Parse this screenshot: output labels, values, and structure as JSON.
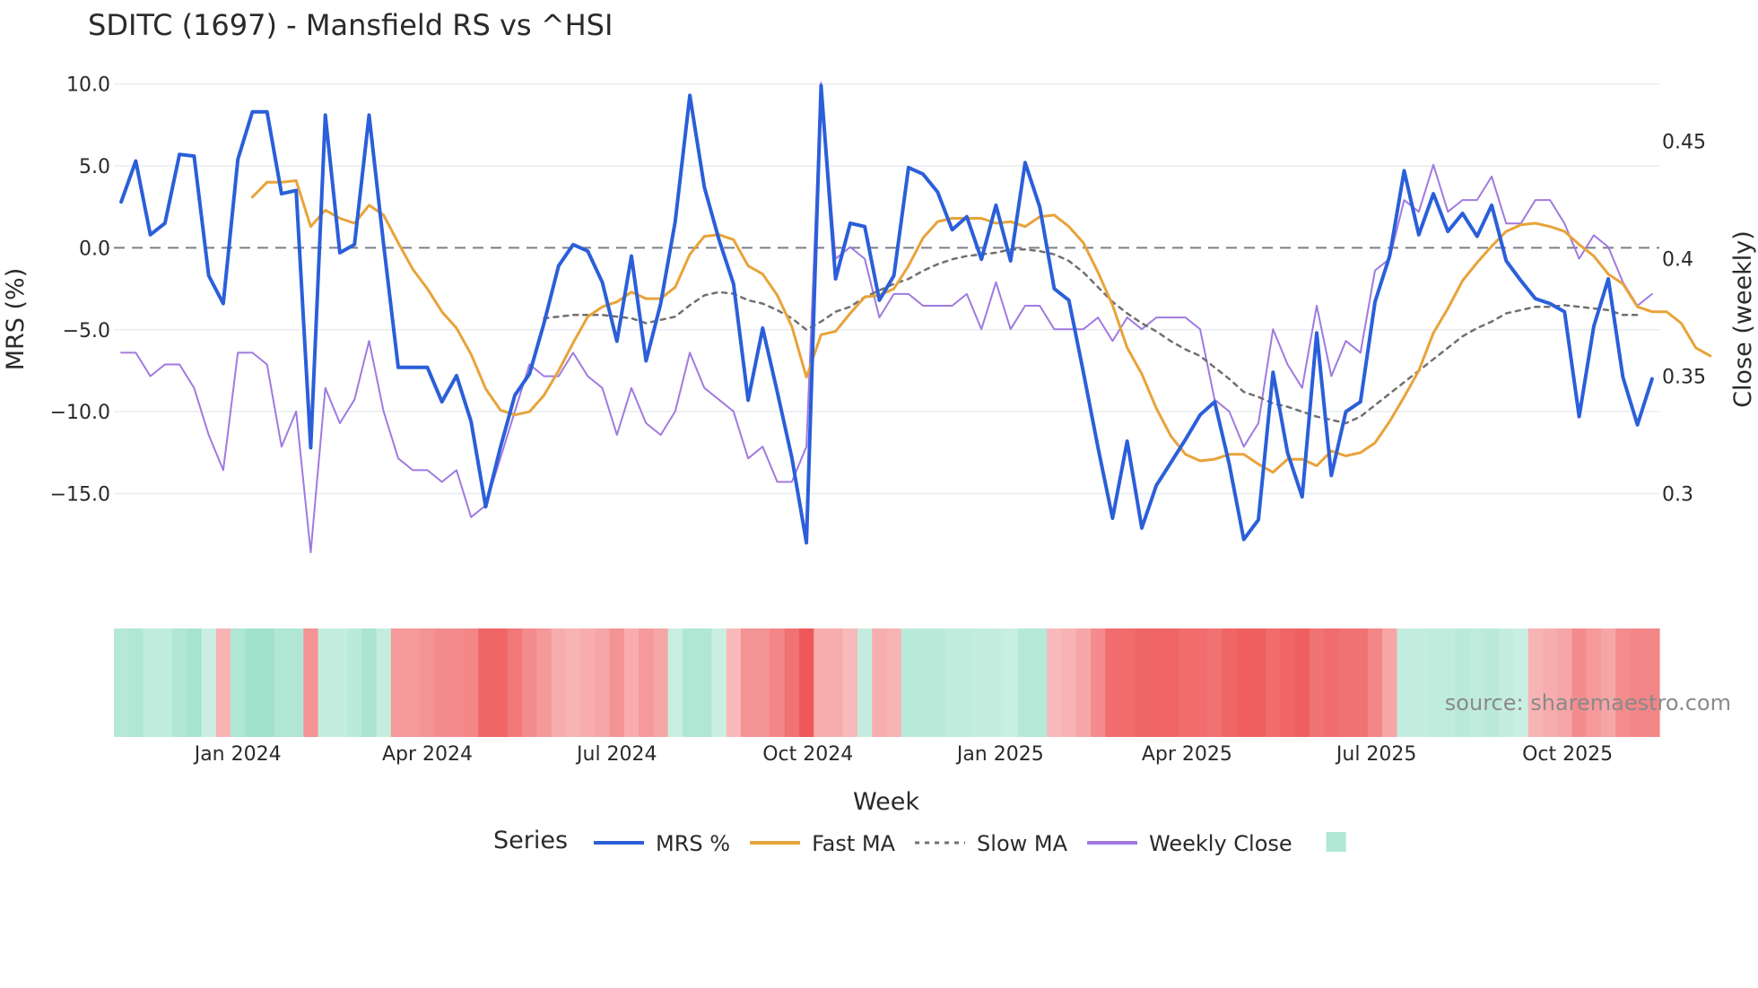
{
  "chart_data": {
    "type": "line",
    "title": "SDITC (1697) - Mansfield RS vs ^HSI",
    "xlabel": "Week",
    "ylabel": "MRS (%)",
    "y2label": "Close (weekly)",
    "ylim": [
      -18.8,
      10.2
    ],
    "y2lim": [
      0.2735,
      0.4758
    ],
    "y_ticks": [
      10,
      5,
      0,
      -5,
      -10,
      -15
    ],
    "y_tick_labels": [
      "10.0",
      "5.0",
      "0.0",
      "−5.0",
      "−10.0",
      "−15.0"
    ],
    "y2_ticks": [
      0.45,
      0.4,
      0.35,
      0.3
    ],
    "y2_tick_labels": [
      "0.45",
      "0.4",
      "0.35",
      "0.3"
    ],
    "x_tick_labels": [
      "Jan 2024",
      "Apr 2024",
      "Jul 2024",
      "Oct 2024",
      "Jan 2025",
      "Apr 2025",
      "Jul 2025",
      "Oct 2025"
    ],
    "x_tick_weeks": [
      8.5,
      21.5,
      34.5,
      47.6,
      60.8,
      73.6,
      86.6,
      99.7
    ],
    "week_count": 106,
    "zero_line": 0,
    "source": "source: sharemaestro.com",
    "legend_title": "Series",
    "series": [
      {
        "name": "MRS %",
        "color": "#2b5fd9",
        "axis": "y",
        "start": 0,
        "values": [
          2.8,
          5.3,
          0.8,
          1.5,
          5.7,
          5.6,
          -1.7,
          -3.4,
          5.4,
          8.3,
          8.3,
          3.3,
          3.5,
          -12.2,
          8.1,
          -0.3,
          0.2,
          8.1,
          0.2,
          -7.3,
          -7.3,
          -7.3,
          -9.4,
          -7.8,
          -10.6,
          -15.8,
          -12.2,
          -9.0,
          -7.7,
          -4.6,
          -1.1,
          0.2,
          -0.2,
          -2.1,
          -5.7,
          -0.5,
          -6.9,
          -3.4,
          1.6,
          9.3,
          3.7,
          0.5,
          -2.2,
          -9.3,
          -4.9,
          -8.8,
          -12.8,
          -18.0,
          9.9,
          -1.9,
          1.5,
          1.3,
          -3.2,
          -1.7,
          4.9,
          4.5,
          3.4,
          1.1,
          1.9,
          -0.7,
          2.6,
          -0.8,
          5.2,
          2.5,
          -2.5,
          -3.2,
          -7.6,
          -12.2,
          -16.5,
          -11.8,
          -17.1,
          -14.5,
          -13.1,
          -11.7,
          -10.2,
          -9.4,
          -13.2,
          -17.8,
          -16.6,
          -7.6,
          -12.5,
          -15.2,
          -5.2,
          -13.9,
          -10.0,
          -9.4,
          -3.3,
          -0.5,
          4.7,
          0.8,
          3.3,
          1.0,
          2.1,
          0.7,
          2.6,
          -0.8,
          -2.0,
          -3.1,
          -3.4,
          -3.9,
          -10.3,
          -4.8,
          -1.9,
          -7.9,
          -10.8,
          -8.0
        ]
      },
      {
        "name": "Fast MA",
        "color": "#e8a33a",
        "axis": "y",
        "start": 9,
        "values": [
          3.1,
          4.0,
          4.0,
          4.1,
          1.3,
          2.3,
          1.8,
          1.5,
          2.6,
          2.0,
          0.3,
          -1.3,
          -2.5,
          -3.9,
          -4.9,
          -6.5,
          -8.6,
          -9.9,
          -10.2,
          -10.0,
          -9.0,
          -7.5,
          -5.8,
          -4.2,
          -3.6,
          -3.3,
          -2.7,
          -3.1,
          -3.1,
          -2.4,
          -0.4,
          0.7,
          0.8,
          0.5,
          -1.1,
          -1.6,
          -2.9,
          -4.8,
          -7.9,
          -5.3,
          -5.1,
          -4.0,
          -3.0,
          -2.9,
          -2.5,
          -1.1,
          0.6,
          1.6,
          1.8,
          1.8,
          1.8,
          1.5,
          1.6,
          1.3,
          1.9,
          2.0,
          1.3,
          0.3,
          -1.5,
          -3.5,
          -6.1,
          -7.7,
          -9.8,
          -11.5,
          -12.6,
          -13.0,
          -12.9,
          -12.6,
          -12.6,
          -13.2,
          -13.7,
          -12.9,
          -12.9,
          -13.3,
          -12.4,
          -12.7,
          -12.5,
          -11.9,
          -10.6,
          -9.1,
          -7.5,
          -5.2,
          -3.7,
          -2.0,
          -0.9,
          0.1,
          1.0,
          1.4,
          1.5,
          1.3,
          1.0,
          0.2,
          -0.5,
          -1.6,
          -2.2,
          -3.6,
          -3.9,
          -3.9,
          -4.6,
          -6.1,
          -6.6
        ]
      },
      {
        "name": "Slow MA",
        "color": "#707070",
        "axis": "y",
        "start": 29,
        "dash": "5,6",
        "values": [
          -4.3,
          -4.2,
          -4.1,
          -4.1,
          -4.1,
          -4.2,
          -4.3,
          -4.6,
          -4.4,
          -4.2,
          -3.5,
          -2.9,
          -2.7,
          -2.8,
          -3.2,
          -3.4,
          -3.8,
          -4.3,
          -5.0,
          -4.5,
          -3.9,
          -3.6,
          -3.0,
          -2.6,
          -2.2,
          -1.9,
          -1.4,
          -1.0,
          -0.7,
          -0.5,
          -0.4,
          -0.3,
          -0.1,
          -0.1,
          -0.2,
          -0.4,
          -0.8,
          -1.5,
          -2.4,
          -3.3,
          -4.0,
          -4.6,
          -5.1,
          -5.7,
          -6.2,
          -6.6,
          -7.3,
          -8.0,
          -8.8,
          -9.1,
          -9.5,
          -9.7,
          -10.0,
          -10.3,
          -10.5,
          -10.7,
          -10.3,
          -9.6,
          -8.9,
          -8.2,
          -7.5,
          -6.8,
          -6.1,
          -5.4,
          -4.9,
          -4.5,
          -4.0,
          -3.8,
          -3.6,
          -3.6,
          -3.5,
          -3.6,
          -3.7,
          -3.8,
          -4.1,
          -4.1
        ]
      },
      {
        "name": "Weekly Close",
        "color": "#a07ae0",
        "axis": "y2",
        "start": 0,
        "values": [
          0.36,
          0.36,
          0.35,
          0.355,
          0.355,
          0.345,
          0.325,
          0.31,
          0.36,
          0.36,
          0.355,
          0.32,
          0.335,
          0.275,
          0.345,
          0.33,
          0.34,
          0.365,
          0.335,
          0.315,
          0.31,
          0.31,
          0.305,
          0.31,
          0.29,
          0.295,
          0.315,
          0.335,
          0.355,
          0.35,
          0.35,
          0.36,
          0.35,
          0.345,
          0.325,
          0.345,
          0.33,
          0.325,
          0.335,
          0.36,
          0.345,
          0.34,
          0.335,
          0.315,
          0.32,
          0.305,
          0.305,
          0.32,
          0.475,
          0.4,
          0.405,
          0.4,
          0.375,
          0.385,
          0.385,
          0.38,
          0.38,
          0.38,
          0.385,
          0.37,
          0.39,
          0.37,
          0.38,
          0.38,
          0.37,
          0.37,
          0.37,
          0.375,
          0.365,
          0.375,
          0.37,
          0.375,
          0.375,
          0.375,
          0.37,
          0.34,
          0.335,
          0.32,
          0.33,
          0.37,
          0.355,
          0.345,
          0.38,
          0.35,
          0.365,
          0.36,
          0.395,
          0.4,
          0.425,
          0.42,
          0.44,
          0.42,
          0.425,
          0.425,
          0.435,
          0.415,
          0.415,
          0.425,
          0.425,
          0.415,
          0.4,
          0.41,
          0.405,
          0.39,
          0.38,
          0.385
        ]
      }
    ],
    "regime_strip": {
      "description": "weekly MRS regime shading, positive=green negative=red, intensity 0-1",
      "values": [
        0.4,
        0.45,
        0.3,
        0.3,
        0.45,
        0.55,
        0.2,
        -0.25,
        0.45,
        0.6,
        0.6,
        0.45,
        0.45,
        -0.5,
        0.25,
        0.25,
        0.35,
        0.5,
        0.25,
        -0.45,
        -0.45,
        -0.5,
        -0.55,
        -0.55,
        -0.6,
        -0.85,
        -0.85,
        -0.7,
        -0.55,
        -0.45,
        -0.3,
        -0.25,
        -0.3,
        -0.35,
        -0.5,
        -0.3,
        -0.45,
        -0.35,
        0.2,
        0.45,
        0.45,
        0.2,
        -0.2,
        -0.5,
        -0.5,
        -0.6,
        -0.75,
        -0.95,
        -0.3,
        -0.3,
        -0.2,
        0.25,
        -0.3,
        -0.25,
        0.35,
        0.35,
        0.35,
        0.3,
        0.3,
        0.25,
        0.25,
        0.2,
        0.4,
        0.4,
        -0.2,
        -0.25,
        -0.35,
        -0.55,
        -0.8,
        -0.8,
        -0.85,
        -0.85,
        -0.85,
        -0.8,
        -0.8,
        -0.75,
        -0.85,
        -0.9,
        -0.9,
        -0.8,
        -0.85,
        -0.9,
        -0.75,
        -0.8,
        -0.75,
        -0.75,
        -0.6,
        -0.35,
        0.25,
        0.25,
        0.3,
        0.3,
        0.35,
        0.3,
        0.35,
        0.25,
        0.2,
        -0.25,
        -0.3,
        -0.35,
        -0.55,
        -0.45,
        -0.35,
        -0.55,
        -0.6,
        -0.6
      ]
    },
    "legend": [
      {
        "label": "MRS %",
        "color": "#2b5fd9",
        "kind": "line"
      },
      {
        "label": "Fast MA",
        "color": "#e8a33a",
        "kind": "line"
      },
      {
        "label": "Slow MA",
        "color": "#707070",
        "kind": "dash"
      },
      {
        "label": "Weekly Close",
        "color": "#a07ae0",
        "kind": "line"
      },
      {
        "label": "",
        "color": "#b0e8d6",
        "kind": "box"
      }
    ]
  }
}
